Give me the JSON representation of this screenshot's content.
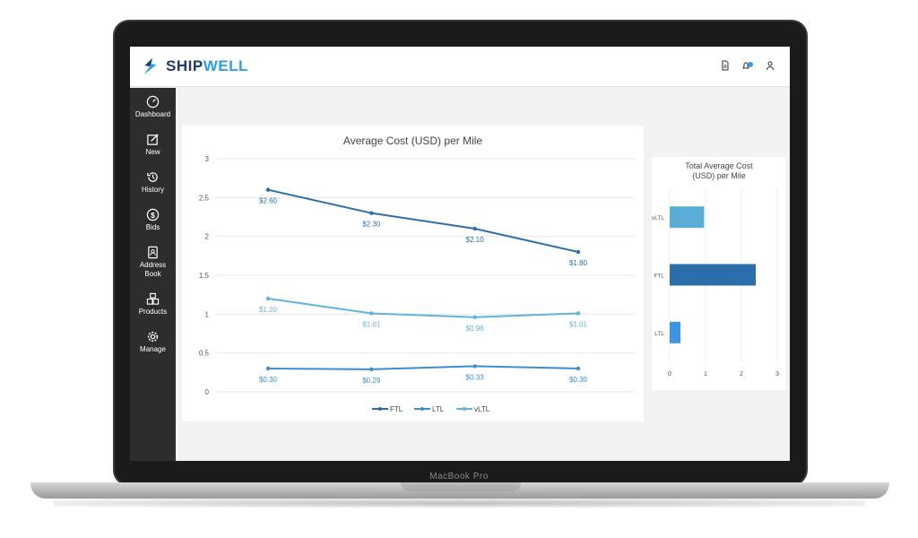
{
  "device": {
    "label": "MacBook Pro"
  },
  "header": {
    "logo_prefix": "SHIP",
    "logo_suffix": "WELL",
    "brand_dark": "#213a6d",
    "brand_light": "#2d9fe0",
    "icons": [
      "document-icon",
      "notifications-icon",
      "user-icon"
    ]
  },
  "sidebar": {
    "items": [
      {
        "label": "Dashboard",
        "icon": "gauge-icon"
      },
      {
        "label": "New",
        "icon": "edit-icon"
      },
      {
        "label": "History",
        "icon": "history-icon"
      },
      {
        "label": "Bids",
        "icon": "dollar-icon"
      },
      {
        "label": "Address",
        "label2": "Book",
        "icon": "address-book-icon"
      },
      {
        "label": "Products",
        "icon": "products-icon"
      },
      {
        "label": "Manage",
        "icon": "gear-icon"
      }
    ]
  },
  "chart_data": [
    {
      "type": "line",
      "title": "Average Cost (USD) per Mile",
      "x": [
        "1",
        "2",
        "3",
        "4"
      ],
      "ylim": [
        0,
        3
      ],
      "yticks": [
        "0",
        "0.5",
        "1",
        "1.5",
        "2",
        "2.5",
        "3"
      ],
      "grid": true,
      "legend": "bottom",
      "series": [
        {
          "name": "FTL",
          "color": "#2a6fa9",
          "values": [
            2.6,
            2.3,
            2.1,
            1.8
          ],
          "labels": [
            "$2.60",
            "$2.30",
            "$2.10",
            "$1.80"
          ]
        },
        {
          "name": "LTL",
          "color": "#3a8fd3",
          "values": [
            0.3,
            0.29,
            0.33,
            0.3
          ],
          "labels": [
            "$0.30",
            "$0.29",
            "$0.33",
            "$0.30"
          ]
        },
        {
          "name": "vLTL",
          "color": "#5fb3dc",
          "values": [
            1.2,
            1.01,
            0.96,
            1.01
          ],
          "labels": [
            "$1.20",
            "$1.01",
            "$0.96",
            "$1.01"
          ]
        }
      ]
    },
    {
      "type": "bar",
      "orientation": "horizontal",
      "title_line1": "Total Average Cost",
      "title_line2": "(USD) per Mile",
      "categories": [
        "vLTL",
        "FTL",
        "LTL"
      ],
      "values": [
        0.96,
        2.4,
        0.3
      ],
      "colors": [
        "#5aaed6",
        "#2a6fa9",
        "#3b96e6"
      ],
      "xlim": [
        0,
        3
      ],
      "xticks": [
        "0",
        "1",
        "2",
        "3"
      ],
      "grid": true
    }
  ]
}
